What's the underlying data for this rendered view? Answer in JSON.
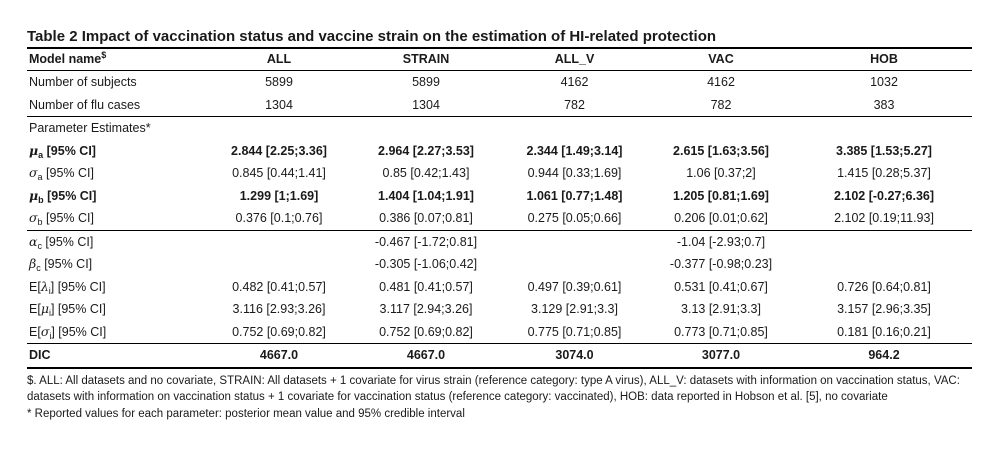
{
  "title": "Table 2 Impact of vaccination status and vaccine strain on the estimation of HI-related protection",
  "header": {
    "label": "Model name",
    "label_mark": "$",
    "columns": [
      "ALL",
      "STRAIN",
      "ALL_V",
      "VAC",
      "HOB"
    ]
  },
  "rows": {
    "subjects": {
      "label": "Number of subjects",
      "values": [
        "5899",
        "5899",
        "4162",
        "4162",
        "1032"
      ]
    },
    "cases": {
      "label": "Number of flu cases",
      "values": [
        "1304",
        "1304",
        "782",
        "782",
        "383"
      ]
    },
    "section": {
      "label": "Parameter Estimates*"
    },
    "mu_a": {
      "sym": "μ",
      "sub": "a",
      "ci": " [95% CI]",
      "values": [
        "2.844 [2.25;3.36]",
        "2.964 [2.27;3.53]",
        "2.344 [1.49;3.14]",
        "2.615 [1.63;3.56]",
        "3.385 [1.53;5.27]"
      ]
    },
    "sigma_a": {
      "sym": "σ",
      "sub": "a",
      "ci": " [95% CI]",
      "values": [
        "0.845 [0.44;1.41]",
        "0.85 [0.42;1.43]",
        "0.944 [0.33;1.69]",
        "1.06 [0.37;2]",
        "1.415 [0.28;5.37]"
      ]
    },
    "mu_b": {
      "sym": "μ",
      "sub": "b",
      "ci": " [95% CI]",
      "values": [
        "1.299 [1;1.69]",
        "1.404 [1.04;1.91]",
        "1.061 [0.77;1.48]",
        "1.205 [0.81;1.69]",
        "2.102 [-0.27;6.36]"
      ]
    },
    "sigma_b": {
      "sym": "σ",
      "sub": "b",
      "ci": " [95% CI]",
      "values": [
        "0.376 [0.1;0.76]",
        "0.386 [0.07;0.81]",
        "0.275 [0.05;0.66]",
        "0.206 [0.01;0.62]",
        "2.102 [0.19;11.93]"
      ]
    },
    "alpha_c": {
      "sym": "α",
      "sub": "c",
      "ci": " [95% CI]",
      "values": [
        "",
        "-0.467 [-1.72;0.81]",
        "",
        "-1.04 [-2.93;0.7]",
        ""
      ]
    },
    "beta_c": {
      "sym": "β",
      "sub": "c",
      "ci": " [95% CI]",
      "values": [
        "",
        "-0.305 [-1.06;0.42]",
        "",
        "-0.377 [-0.98;0.23]",
        ""
      ]
    },
    "e_lambda": {
      "pre": "E[",
      "sym": "λ",
      "sub": "i",
      "post": "] [95% CI]",
      "values": [
        "0.482 [0.41;0.57]",
        "0.481 [0.41;0.57]",
        "0.497 [0.39;0.61]",
        "0.531 [0.41;0.67]",
        "0.726 [0.64;0.81]"
      ]
    },
    "e_mu": {
      "pre": "E[",
      "sym": "μ",
      "sub": "i",
      "post": "] [95% CI]",
      "values": [
        "3.116 [2.93;3.26]",
        "3.117 [2.94;3.26]",
        "3.129 [2.91;3.3]",
        "3.13 [2.91;3.3]",
        "3.157 [2.96;3.35]"
      ]
    },
    "e_sigma": {
      "pre": "E[",
      "sym": "σ",
      "sub": "i",
      "post": "] [95% CI]",
      "values": [
        "0.752 [0.69;0.82]",
        "0.752 [0.69;0.82]",
        "0.775 [0.71;0.85]",
        "0.773 [0.71;0.85]",
        "0.181 [0.16;0.21]"
      ]
    },
    "dic": {
      "label": "DIC",
      "values": [
        "4667.0",
        "4667.0",
        "3074.0",
        "3077.0",
        "964.2"
      ]
    }
  },
  "notes": {
    "dollar": "$. ALL: All datasets and no covariate, STRAIN: All datasets + 1 covariate for virus strain (reference category: type A virus), ALL_V: datasets with information on vaccination status, VAC: datasets with information on vaccination status + 1 covariate for vaccination status (reference category: vaccinated), HOB: data reported in Hobson et al. [5], no covariate",
    "star": "* Reported values for each parameter: posterior mean value and 95% credible interval"
  }
}
